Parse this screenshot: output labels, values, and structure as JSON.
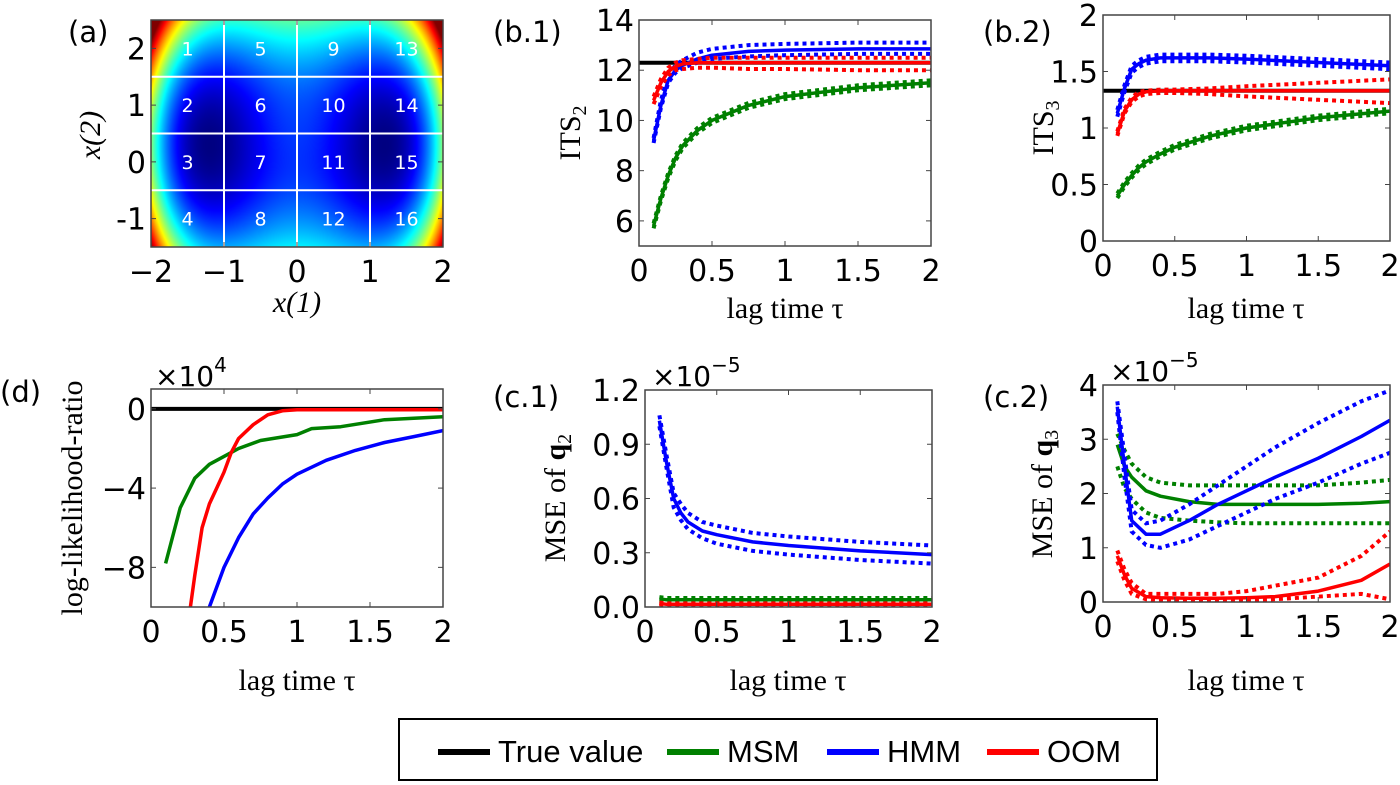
{
  "legend": {
    "items": [
      {
        "label": "True value",
        "color": "#000000"
      },
      {
        "label": "MSM",
        "color": "#008000"
      },
      {
        "label": "HMM",
        "color": "#0000ff"
      },
      {
        "label": "OOM",
        "color": "#ff0000"
      }
    ]
  },
  "chart_data": [
    {
      "id": "a",
      "panel_label": "(a)",
      "type": "heatmap",
      "colormap": "jet",
      "xlabel": "x(1)",
      "ylabel": "x(2)",
      "xlim": [
        -2,
        2
      ],
      "ylim": [
        -1.5,
        2.5
      ],
      "xticks": [
        -2,
        -1,
        0,
        1,
        2
      ],
      "xtick_labels": [
        "−2",
        "−1",
        "0",
        "1",
        "2"
      ],
      "yticks": [
        -1,
        0,
        1,
        2
      ],
      "ytick_labels": [
        "-1",
        "0",
        "1",
        "2"
      ],
      "grid_x": [
        -1,
        0,
        1
      ],
      "grid_y": [
        -0.5,
        0.5,
        1.5
      ],
      "cells": [
        {
          "label": "1",
          "x": -1.5,
          "y": 2
        },
        {
          "label": "2",
          "x": -1.5,
          "y": 1
        },
        {
          "label": "3",
          "x": -1.5,
          "y": 0
        },
        {
          "label": "4",
          "x": -1.5,
          "y": -1
        },
        {
          "label": "5",
          "x": -0.5,
          "y": 2
        },
        {
          "label": "6",
          "x": -0.5,
          "y": 1
        },
        {
          "label": "7",
          "x": -0.5,
          "y": 0
        },
        {
          "label": "8",
          "x": -0.5,
          "y": -1
        },
        {
          "label": "9",
          "x": 0.5,
          "y": 2
        },
        {
          "label": "10",
          "x": 0.5,
          "y": 1
        },
        {
          "label": "11",
          "x": 0.5,
          "y": 0
        },
        {
          "label": "12",
          "x": 0.5,
          "y": -1
        },
        {
          "label": "13",
          "x": 1.5,
          "y": 2
        },
        {
          "label": "14",
          "x": 1.5,
          "y": 1
        },
        {
          "label": "15",
          "x": 1.5,
          "y": 0
        },
        {
          "label": "16",
          "x": 1.5,
          "y": -1
        }
      ]
    },
    {
      "id": "b1",
      "panel_label": "(b.1)",
      "type": "line",
      "xlabel": "lag time τ",
      "ylabel": "ITS",
      "ylabel_sub": "2",
      "xlim": [
        0,
        2
      ],
      "ylim": [
        5,
        14
      ],
      "xticks": [
        0,
        0.5,
        1,
        1.5,
        2
      ],
      "xtick_labels": [
        "0",
        "0.5",
        "1",
        "1.5",
        "2"
      ],
      "yticks": [
        6,
        8,
        10,
        12,
        14
      ],
      "ytick_labels": [
        "6",
        "8",
        "10",
        "12",
        "14"
      ],
      "true_value": 12.3,
      "x": [
        0.1,
        0.15,
        0.2,
        0.25,
        0.3,
        0.4,
        0.5,
        0.75,
        1,
        1.5,
        2
      ],
      "series": [
        {
          "name": "MSM",
          "color": "#008000",
          "y": [
            5.8,
            6.9,
            7.8,
            8.5,
            9.0,
            9.6,
            10.0,
            10.6,
            10.95,
            11.3,
            11.5
          ],
          "upper": [
            5.9,
            7.0,
            7.9,
            8.6,
            9.1,
            9.7,
            10.1,
            10.7,
            11.05,
            11.4,
            11.6
          ],
          "lower": [
            5.7,
            6.8,
            7.7,
            8.4,
            8.9,
            9.5,
            9.9,
            10.5,
            10.85,
            11.2,
            11.4
          ]
        },
        {
          "name": "HMM",
          "color": "#0000ff",
          "y": [
            9.2,
            10.6,
            11.6,
            12.0,
            12.2,
            12.45,
            12.6,
            12.75,
            12.8,
            12.85,
            12.85
          ],
          "upper": [
            9.3,
            10.8,
            11.8,
            12.2,
            12.4,
            12.7,
            12.85,
            13.0,
            13.05,
            13.1,
            13.1
          ],
          "lower": [
            9.1,
            10.5,
            11.5,
            11.9,
            12.1,
            12.3,
            12.45,
            12.55,
            12.6,
            12.65,
            12.65
          ]
        },
        {
          "name": "OOM",
          "color": "#ff0000",
          "y": [
            10.8,
            11.5,
            11.95,
            12.15,
            12.25,
            12.3,
            12.3,
            12.3,
            12.3,
            12.3,
            12.3
          ],
          "upper": [
            10.95,
            11.65,
            12.1,
            12.3,
            12.4,
            12.45,
            12.5,
            12.5,
            12.5,
            12.5,
            12.5
          ],
          "lower": [
            10.65,
            11.35,
            11.8,
            12.0,
            12.05,
            12.1,
            12.1,
            12.05,
            12.05,
            12.0,
            12.0
          ]
        }
      ]
    },
    {
      "id": "b2",
      "panel_label": "(b.2)",
      "type": "line",
      "xlabel": "lag time τ",
      "ylabel": "ITS",
      "ylabel_sub": "3",
      "xlim": [
        0,
        2
      ],
      "ylim": [
        0,
        2
      ],
      "xticks": [
        0,
        0.5,
        1,
        1.5,
        2
      ],
      "xtick_labels": [
        "0",
        "0.5",
        "1",
        "1.5",
        "2"
      ],
      "yticks": [
        0,
        0.5,
        1,
        1.5,
        2
      ],
      "ytick_labels": [
        "0",
        "0.5",
        "1",
        "1.5",
        "2"
      ],
      "true_value": 1.33,
      "x": [
        0.1,
        0.15,
        0.2,
        0.25,
        0.3,
        0.4,
        0.5,
        0.75,
        1,
        1.5,
        2
      ],
      "series": [
        {
          "name": "MSM",
          "color": "#008000",
          "y": [
            0.4,
            0.5,
            0.58,
            0.65,
            0.7,
            0.77,
            0.83,
            0.93,
            1.0,
            1.09,
            1.15
          ],
          "upper": [
            0.42,
            0.52,
            0.6,
            0.67,
            0.72,
            0.79,
            0.85,
            0.95,
            1.02,
            1.11,
            1.17
          ],
          "lower": [
            0.38,
            0.48,
            0.56,
            0.63,
            0.68,
            0.75,
            0.81,
            0.91,
            0.98,
            1.07,
            1.13
          ]
        },
        {
          "name": "HMM",
          "color": "#0000ff",
          "y": [
            1.13,
            1.35,
            1.52,
            1.57,
            1.6,
            1.62,
            1.62,
            1.62,
            1.61,
            1.58,
            1.55
          ],
          "upper": [
            1.16,
            1.38,
            1.55,
            1.6,
            1.63,
            1.65,
            1.65,
            1.65,
            1.64,
            1.61,
            1.58
          ],
          "lower": [
            1.1,
            1.32,
            1.49,
            1.54,
            1.57,
            1.59,
            1.59,
            1.59,
            1.58,
            1.55,
            1.52
          ]
        },
        {
          "name": "OOM",
          "color": "#ff0000",
          "y": [
            0.95,
            1.15,
            1.25,
            1.3,
            1.32,
            1.33,
            1.33,
            1.33,
            1.33,
            1.33,
            1.33
          ],
          "upper": [
            0.97,
            1.17,
            1.27,
            1.32,
            1.33,
            1.34,
            1.34,
            1.35,
            1.37,
            1.4,
            1.43
          ],
          "lower": [
            0.93,
            1.13,
            1.23,
            1.28,
            1.3,
            1.31,
            1.31,
            1.3,
            1.28,
            1.25,
            1.22
          ]
        }
      ]
    },
    {
      "id": "d",
      "panel_label": "(d)",
      "type": "line",
      "xlabel": "lag time τ",
      "ylabel": "log-likelihood-ratio",
      "multiplier": "×10",
      "multiplier_exp": "4",
      "xlim": [
        0,
        2
      ],
      "ylim": [
        -10,
        1
      ],
      "xticks": [
        0,
        0.5,
        1,
        1.5,
        2
      ],
      "xtick_labels": [
        "0",
        "0.5",
        "1",
        "1.5",
        "2"
      ],
      "yticks": [
        -8,
        -4,
        0
      ],
      "ytick_labels": [
        "−8",
        "−4",
        "0"
      ],
      "true_value": 0,
      "series": [
        {
          "name": "MSM",
          "color": "#008000",
          "x": [
            0.1,
            0.2,
            0.3,
            0.4,
            0.5,
            0.6,
            0.75,
            1,
            1.1,
            1.3,
            1.6,
            2
          ],
          "y": [
            -7.8,
            -5,
            -3.5,
            -2.8,
            -2.4,
            -2.0,
            -1.6,
            -1.3,
            -1.0,
            -0.9,
            -0.55,
            -0.4
          ]
        },
        {
          "name": "HMM",
          "color": "#0000ff",
          "x": [
            0.4,
            0.5,
            0.6,
            0.7,
            0.8,
            0.9,
            1,
            1.2,
            1.4,
            1.6,
            1.8,
            2
          ],
          "y": [
            -10,
            -8,
            -6.5,
            -5.3,
            -4.5,
            -3.8,
            -3.3,
            -2.6,
            -2.1,
            -1.7,
            -1.4,
            -1.1
          ]
        },
        {
          "name": "OOM",
          "color": "#ff0000",
          "x": [
            0.27,
            0.3,
            0.35,
            0.4,
            0.45,
            0.5,
            0.55,
            0.6,
            0.7,
            0.8,
            0.9,
            1,
            2
          ],
          "y": [
            -10,
            -8.4,
            -6,
            -4.8,
            -4.0,
            -3.2,
            -2.2,
            -1.5,
            -0.8,
            -0.3,
            -0.1,
            -0.05,
            -0.05
          ]
        }
      ]
    },
    {
      "id": "c1",
      "panel_label": "(c.1)",
      "type": "line",
      "xlabel": "lag time τ",
      "ylabel": "MSE of ",
      "ylabel_bold": "q",
      "ylabel_sub": "2",
      "multiplier": "×10",
      "multiplier_exp": "−5",
      "xlim": [
        0,
        2
      ],
      "ylim": [
        0,
        1.2
      ],
      "xticks": [
        0,
        0.5,
        1,
        1.5,
        2
      ],
      "xtick_labels": [
        "0",
        "0.5",
        "1",
        "1.5",
        "2"
      ],
      "yticks": [
        0,
        0.3,
        0.6,
        0.9,
        1.2
      ],
      "ytick_labels": [
        "0.0",
        "0.3",
        "0.6",
        "0.9",
        "1.2"
      ],
      "x": [
        0.1,
        0.15,
        0.2,
        0.25,
        0.3,
        0.4,
        0.5,
        0.75,
        1,
        1.5,
        2
      ],
      "series": [
        {
          "name": "MSM",
          "color": "#008000",
          "y": [
            0.045,
            0.04,
            0.04,
            0.04,
            0.04,
            0.04,
            0.04,
            0.04,
            0.04,
            0.04,
            0.04
          ],
          "upper": [
            0.055,
            0.05,
            0.05,
            0.05,
            0.05,
            0.05,
            0.05,
            0.05,
            0.05,
            0.05,
            0.05
          ],
          "lower": [
            0.035,
            0.03,
            0.03,
            0.03,
            0.03,
            0.03,
            0.03,
            0.03,
            0.03,
            0.03,
            0.03
          ]
        },
        {
          "name": "HMM",
          "color": "#0000ff",
          "y": [
            1.03,
            0.8,
            0.6,
            0.52,
            0.47,
            0.42,
            0.4,
            0.36,
            0.34,
            0.31,
            0.29
          ],
          "upper": [
            1.06,
            0.84,
            0.63,
            0.57,
            0.52,
            0.47,
            0.45,
            0.41,
            0.39,
            0.36,
            0.34
          ],
          "lower": [
            1.0,
            0.77,
            0.55,
            0.48,
            0.43,
            0.38,
            0.35,
            0.31,
            0.29,
            0.26,
            0.24
          ]
        },
        {
          "name": "OOM",
          "color": "#ff0000",
          "y": [
            0.02,
            0.015,
            0.015,
            0.015,
            0.015,
            0.015,
            0.015,
            0.015,
            0.015,
            0.015,
            0.015
          ],
          "upper": [
            0.025,
            0.02,
            0.02,
            0.02,
            0.02,
            0.02,
            0.02,
            0.02,
            0.02,
            0.02,
            0.02
          ],
          "lower": [
            0.015,
            0.01,
            0.01,
            0.01,
            0.01,
            0.01,
            0.01,
            0.01,
            0.01,
            0.01,
            0.01
          ]
        }
      ]
    },
    {
      "id": "c2",
      "panel_label": "(c.2)",
      "type": "line",
      "xlabel": "lag time τ",
      "ylabel": "MSE of ",
      "ylabel_bold": "q",
      "ylabel_sub": "3",
      "multiplier": "×10",
      "multiplier_exp": "−5",
      "xlim": [
        0,
        2
      ],
      "ylim": [
        0,
        4
      ],
      "xticks": [
        0,
        0.5,
        1,
        1.5,
        2
      ],
      "xtick_labels": [
        "0",
        "0.5",
        "1",
        "1.5",
        "2"
      ],
      "yticks": [
        0,
        1,
        2,
        3,
        4
      ],
      "ytick_labels": [
        "0",
        "1",
        "2",
        "3",
        "4"
      ],
      "x": [
        0.1,
        0.15,
        0.2,
        0.3,
        0.4,
        0.6,
        0.8,
        1,
        1.2,
        1.5,
        1.8,
        2
      ],
      "series": [
        {
          "name": "MSM",
          "color": "#008000",
          "y": [
            2.9,
            2.5,
            2.3,
            2.05,
            1.95,
            1.85,
            1.8,
            1.8,
            1.8,
            1.8,
            1.82,
            1.85
          ],
          "upper": [
            3.1,
            2.8,
            2.55,
            2.3,
            2.2,
            2.15,
            2.15,
            2.15,
            2.15,
            2.15,
            2.2,
            2.25
          ],
          "lower": [
            2.5,
            2.1,
            1.9,
            1.65,
            1.55,
            1.5,
            1.47,
            1.45,
            1.45,
            1.45,
            1.45,
            1.45
          ]
        },
        {
          "name": "HMM",
          "color": "#0000ff",
          "y": [
            3.6,
            2.5,
            1.5,
            1.25,
            1.25,
            1.5,
            1.8,
            2.05,
            2.3,
            2.65,
            3.05,
            3.35
          ],
          "upper": [
            3.7,
            2.7,
            1.7,
            1.45,
            1.5,
            1.8,
            2.15,
            2.5,
            2.85,
            3.3,
            3.7,
            3.9
          ],
          "lower": [
            3.5,
            2.3,
            1.3,
            1.05,
            1.0,
            1.15,
            1.4,
            1.65,
            1.9,
            2.2,
            2.55,
            2.75
          ]
        },
        {
          "name": "OOM",
          "color": "#ff0000",
          "y": [
            0.85,
            0.5,
            0.25,
            0.1,
            0.08,
            0.07,
            0.07,
            0.08,
            0.1,
            0.2,
            0.4,
            0.7
          ],
          "upper": [
            0.95,
            0.6,
            0.35,
            0.15,
            0.15,
            0.15,
            0.15,
            0.2,
            0.3,
            0.45,
            0.85,
            1.3
          ],
          "lower": [
            0.75,
            0.4,
            0.15,
            0.05,
            0.03,
            0.03,
            0.03,
            0.03,
            0.05,
            0.1,
            0.15,
            0.05
          ]
        }
      ]
    }
  ]
}
